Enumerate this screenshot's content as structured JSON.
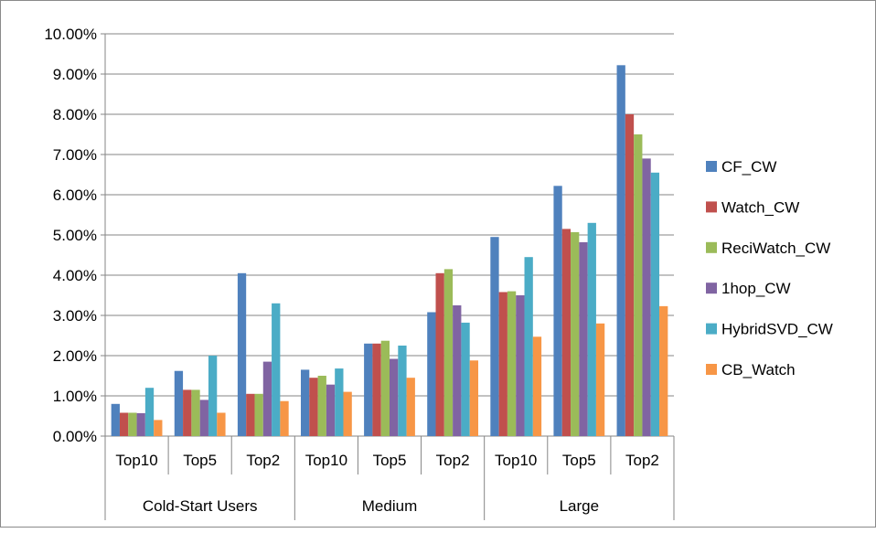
{
  "chart_data": {
    "type": "bar",
    "title": "",
    "xlabel": "",
    "ylabel": "",
    "ylim": [
      0,
      10
    ],
    "y_tick_step": 1,
    "y_tick_labels": [
      "0.00%",
      "1.00%",
      "2.00%",
      "3.00%",
      "4.00%",
      "5.00%",
      "6.00%",
      "7.00%",
      "8.00%",
      "9.00%",
      "10.00%"
    ],
    "grid": true,
    "legend_position": "right",
    "groups": [
      {
        "label": "Cold-Start Users",
        "categories": [
          "Top10",
          "Top5",
          "Top2"
        ]
      },
      {
        "label": "Medium",
        "categories": [
          "Top10",
          "Top5",
          "Top2"
        ]
      },
      {
        "label": "Large",
        "categories": [
          "Top10",
          "Top5",
          "Top2"
        ]
      }
    ],
    "series": [
      {
        "name": "CF_CW",
        "color": "#4F81BD",
        "values": [
          0.8,
          1.62,
          4.05,
          1.65,
          2.3,
          3.08,
          4.95,
          6.22,
          9.22
        ]
      },
      {
        "name": "Watch_CW",
        "color": "#C0504D",
        "values": [
          0.58,
          1.15,
          1.05,
          1.45,
          2.3,
          4.05,
          3.58,
          5.15,
          8.0
        ]
      },
      {
        "name": "ReciWatch_CW",
        "color": "#9BBB59",
        "values": [
          0.58,
          1.15,
          1.05,
          1.5,
          2.37,
          4.15,
          3.6,
          5.07,
          7.5
        ]
      },
      {
        "name": "1hop_CW",
        "color": "#8064A2",
        "values": [
          0.57,
          0.9,
          1.85,
          1.28,
          1.92,
          3.25,
          3.5,
          4.82,
          6.9
        ]
      },
      {
        "name": "HybridSVD_CW",
        "color": "#4BACC6",
        "values": [
          1.2,
          2.0,
          3.3,
          1.68,
          2.25,
          2.82,
          4.45,
          5.3,
          6.55
        ]
      },
      {
        "name": "CB_Watch",
        "color": "#F79646",
        "values": [
          0.4,
          0.58,
          0.87,
          1.1,
          1.45,
          1.88,
          2.47,
          2.8,
          3.23
        ]
      }
    ]
  }
}
